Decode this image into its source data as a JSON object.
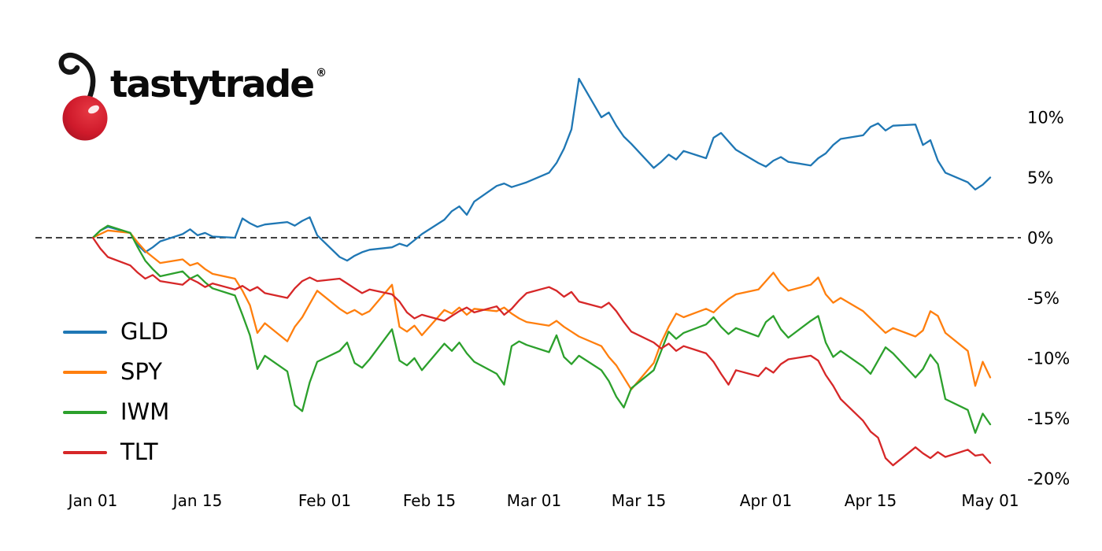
{
  "logo": {
    "brand": "tastytrade",
    "registered": "®"
  },
  "chart_data": {
    "type": "line",
    "title": "",
    "xlabel": "",
    "ylabel": "",
    "x_unit": "days_from_jan_01",
    "grid": false,
    "zero_line": true,
    "legend_position": "center-left",
    "ylim": [
      -21,
      14.5
    ],
    "x_ticks": [
      {
        "day": 0,
        "label": "Jan 01"
      },
      {
        "day": 14,
        "label": "Jan 15"
      },
      {
        "day": 31,
        "label": "Feb 01"
      },
      {
        "day": 45,
        "label": "Feb 15"
      },
      {
        "day": 59,
        "label": "Mar 01"
      },
      {
        "day": 73,
        "label": "Mar 15"
      },
      {
        "day": 90,
        "label": "Apr 01"
      },
      {
        "day": 104,
        "label": "Apr 15"
      },
      {
        "day": 120,
        "label": "May 01"
      }
    ],
    "y_ticks": [
      {
        "value": 10,
        "label": "10%"
      },
      {
        "value": 5,
        "label": "5%"
      },
      {
        "value": 0,
        "label": "0%"
      },
      {
        "value": -5,
        "label": "-5%"
      },
      {
        "value": -10,
        "label": "-10%"
      },
      {
        "value": -15,
        "label": "-15%"
      },
      {
        "value": -20,
        "label": "-20%"
      }
    ],
    "x_days": [
      0,
      1,
      2,
      5,
      6,
      7,
      8,
      9,
      12,
      13,
      14,
      15,
      16,
      19,
      20,
      21,
      22,
      23,
      26,
      27,
      28,
      29,
      30,
      33,
      34,
      35,
      36,
      37,
      40,
      41,
      42,
      43,
      44,
      47,
      48,
      49,
      50,
      51,
      54,
      55,
      56,
      57,
      58,
      61,
      62,
      63,
      64,
      65,
      68,
      69,
      70,
      71,
      72,
      75,
      76,
      77,
      78,
      79,
      82,
      83,
      84,
      85,
      86,
      89,
      90,
      91,
      92,
      93,
      96,
      97,
      98,
      99,
      100,
      103,
      104,
      105,
      106,
      107,
      110,
      111,
      112,
      113,
      114,
      117,
      118,
      119,
      120
    ],
    "series": [
      {
        "name": "GLD",
        "color": "#1f77b4",
        "values": [
          0.0,
          0.6,
          0.9,
          0.4,
          -0.6,
          -1.2,
          -0.8,
          -0.3,
          0.3,
          0.7,
          0.2,
          0.4,
          0.1,
          0.0,
          1.6,
          1.2,
          0.9,
          1.1,
          1.3,
          1.0,
          1.4,
          1.7,
          0.2,
          -1.6,
          -1.9,
          -1.5,
          -1.2,
          -1.0,
          -0.8,
          -0.5,
          -0.7,
          -0.2,
          0.3,
          1.5,
          2.2,
          2.6,
          1.9,
          3.0,
          4.3,
          4.5,
          4.2,
          4.4,
          4.6,
          5.4,
          6.2,
          7.4,
          9.0,
          13.2,
          10.0,
          10.4,
          9.3,
          8.4,
          7.8,
          5.8,
          6.3,
          6.9,
          6.5,
          7.2,
          6.6,
          8.3,
          8.7,
          8.0,
          7.3,
          6.2,
          5.9,
          6.4,
          6.7,
          6.3,
          6.0,
          6.6,
          7.0,
          7.7,
          8.2,
          8.5,
          9.2,
          9.5,
          8.9,
          9.3,
          9.4,
          7.7,
          8.1,
          6.4,
          5.4,
          4.6,
          4.0,
          4.4,
          5.0
        ]
      },
      {
        "name": "SPY",
        "color": "#ff7f0e",
        "values": [
          0.0,
          0.3,
          0.6,
          0.4,
          -0.4,
          -1.1,
          -1.6,
          -2.1,
          -1.8,
          -2.3,
          -2.1,
          -2.6,
          -3.0,
          -3.4,
          -4.4,
          -5.6,
          -7.9,
          -7.1,
          -8.6,
          -7.4,
          -6.6,
          -5.5,
          -4.4,
          -5.9,
          -6.3,
          -6.0,
          -6.4,
          -6.1,
          -3.9,
          -7.4,
          -7.8,
          -7.3,
          -8.1,
          -6.0,
          -6.3,
          -5.8,
          -6.4,
          -5.9,
          -6.1,
          -5.8,
          -6.3,
          -6.7,
          -7.0,
          -7.3,
          -6.9,
          -7.4,
          -7.8,
          -8.2,
          -9.0,
          -9.9,
          -10.6,
          -11.6,
          -12.6,
          -10.4,
          -8.7,
          -7.4,
          -6.3,
          -6.6,
          -5.9,
          -6.2,
          -5.6,
          -5.1,
          -4.7,
          -4.3,
          -3.6,
          -2.9,
          -3.8,
          -4.4,
          -3.9,
          -3.3,
          -4.7,
          -5.4,
          -5.0,
          -6.1,
          -6.7,
          -7.3,
          -7.9,
          -7.5,
          -8.2,
          -7.7,
          -6.1,
          -6.5,
          -7.9,
          -9.4,
          -12.3,
          -10.3,
          -11.6
        ]
      },
      {
        "name": "IWM",
        "color": "#2ca02c",
        "values": [
          0.0,
          0.6,
          1.0,
          0.4,
          -0.8,
          -1.9,
          -2.6,
          -3.2,
          -2.8,
          -3.4,
          -3.1,
          -3.7,
          -4.2,
          -4.8,
          -6.4,
          -8.1,
          -10.9,
          -9.8,
          -11.1,
          -13.9,
          -14.4,
          -12.0,
          -10.3,
          -9.4,
          -8.7,
          -10.4,
          -10.8,
          -10.1,
          -7.6,
          -10.2,
          -10.6,
          -10.0,
          -11.0,
          -8.8,
          -9.4,
          -8.7,
          -9.6,
          -10.3,
          -11.3,
          -12.2,
          -9.0,
          -8.6,
          -8.9,
          -9.5,
          -8.1,
          -9.9,
          -10.5,
          -9.8,
          -11.0,
          -11.9,
          -13.2,
          -14.1,
          -12.5,
          -11.0,
          -9.4,
          -7.8,
          -8.4,
          -7.9,
          -7.2,
          -6.6,
          -7.4,
          -8.0,
          -7.5,
          -8.2,
          -7.0,
          -6.5,
          -7.6,
          -8.3,
          -6.9,
          -6.5,
          -8.7,
          -9.9,
          -9.4,
          -10.7,
          -11.3,
          -10.2,
          -9.1,
          -9.6,
          -11.6,
          -10.9,
          -9.7,
          -10.5,
          -13.4,
          -14.3,
          -16.2,
          -14.6,
          -15.5
        ]
      },
      {
        "name": "TLT",
        "color": "#d62728",
        "values": [
          0.0,
          -0.9,
          -1.6,
          -2.3,
          -2.9,
          -3.4,
          -3.1,
          -3.6,
          -3.9,
          -3.4,
          -3.7,
          -4.1,
          -3.8,
          -4.3,
          -4.0,
          -4.4,
          -4.1,
          -4.6,
          -5.0,
          -4.2,
          -3.6,
          -3.3,
          -3.6,
          -3.4,
          -3.8,
          -4.2,
          -4.6,
          -4.3,
          -4.7,
          -5.3,
          -6.2,
          -6.7,
          -6.4,
          -6.9,
          -6.5,
          -6.1,
          -5.8,
          -6.2,
          -5.7,
          -6.4,
          -5.9,
          -5.2,
          -4.6,
          -4.1,
          -4.4,
          -4.9,
          -4.5,
          -5.3,
          -5.8,
          -5.4,
          -6.1,
          -7.0,
          -7.8,
          -8.7,
          -9.2,
          -8.8,
          -9.4,
          -9.0,
          -9.6,
          -10.3,
          -11.3,
          -12.2,
          -11.0,
          -11.5,
          -10.8,
          -11.2,
          -10.5,
          -10.1,
          -9.8,
          -10.2,
          -11.4,
          -12.3,
          -13.4,
          -15.2,
          -16.1,
          -16.6,
          -18.3,
          -18.9,
          -17.4,
          -17.9,
          -18.3,
          -17.8,
          -18.2,
          -17.6,
          -18.1,
          -18.0,
          -18.7
        ]
      }
    ]
  }
}
